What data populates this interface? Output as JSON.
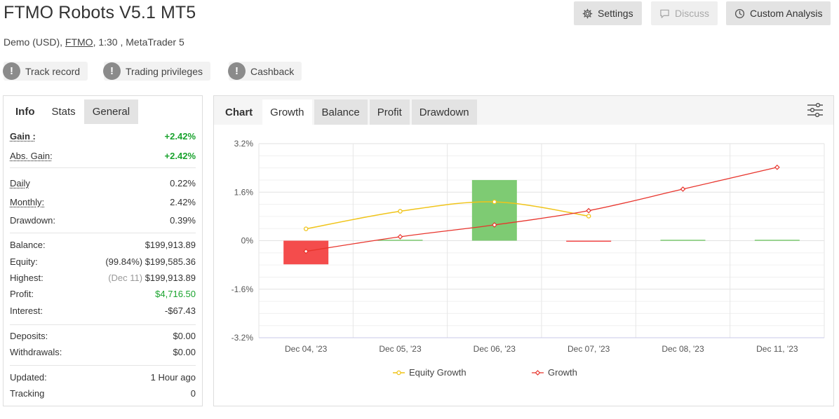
{
  "header": {
    "title": "FTMO Robots V5.1 MT5",
    "subtitle_prefix": "Demo (USD), ",
    "subtitle_link": "FTMO",
    "subtitle_suffix": ", 1:30 , MetaTrader 5",
    "buttons": {
      "settings": "Settings",
      "discuss": "Discuss",
      "custom_analysis": "Custom Analysis"
    },
    "pills": [
      "Track record",
      "Trading privileges",
      "Cashback"
    ]
  },
  "left_tabs": [
    "Info",
    "Stats",
    "General"
  ],
  "stats": {
    "gain": {
      "label": "Gain :",
      "value": "+2.42%"
    },
    "abs_gain": {
      "label": "Abs. Gain:",
      "value": "+2.42%"
    },
    "daily": {
      "label": "Daily",
      "value": "0.22%"
    },
    "monthly": {
      "label": "Monthly:",
      "value": "2.42%"
    },
    "drawdown": {
      "label": "Drawdown:",
      "value": "0.39%"
    },
    "balance": {
      "label": "Balance:",
      "value": "$199,913.89"
    },
    "equity": {
      "label": "Equity:",
      "note": "(99.84%)",
      "value": "$199,585.36"
    },
    "highest": {
      "label": "Highest:",
      "note": "(Dec 11)",
      "value": "$199,913.89"
    },
    "profit": {
      "label": "Profit:",
      "value": "$4,716.50"
    },
    "interest": {
      "label": "Interest:",
      "value": "-$67.43"
    },
    "deposits": {
      "label": "Deposits:",
      "value": "$0.00"
    },
    "withdrawals": {
      "label": "Withdrawals:",
      "value": "$0.00"
    },
    "updated": {
      "label": "Updated:",
      "value": "1 Hour ago"
    },
    "tracking": {
      "label": "Tracking",
      "value": "0"
    }
  },
  "chart_tabs": [
    "Chart",
    "Growth",
    "Balance",
    "Profit",
    "Drawdown"
  ],
  "colors": {
    "equity_line": "#f0c419",
    "growth_line": "#e8342c",
    "bar_negative": "#f44c4c",
    "bar_positive": "#7ecb73",
    "gain_green": "#1aa32e"
  },
  "chart_data": {
    "type": "bar",
    "categories": [
      "Dec 04, '23",
      "Dec 05, '23",
      "Dec 06, '23",
      "Dec 07, '23",
      "Dec 08, '23",
      "Dec 11, '23"
    ],
    "y_ticks": [
      "3.2%",
      "1.6%",
      "0%",
      "-1.6%",
      "-3.2%"
    ],
    "ylim": [
      -3.2,
      3.2
    ],
    "bars": [
      -0.78,
      0.03,
      2.0,
      -0.02,
      0.03,
      0.03
    ],
    "series": [
      {
        "name": "Equity Growth",
        "type": "line",
        "values": [
          0.39,
          0.97,
          1.28,
          0.81,
          null,
          null
        ]
      },
      {
        "name": "Growth",
        "type": "line",
        "values": [
          -0.35,
          0.13,
          0.52,
          0.99,
          1.7,
          2.42
        ]
      }
    ],
    "legend_position": "bottom",
    "grid": true
  }
}
